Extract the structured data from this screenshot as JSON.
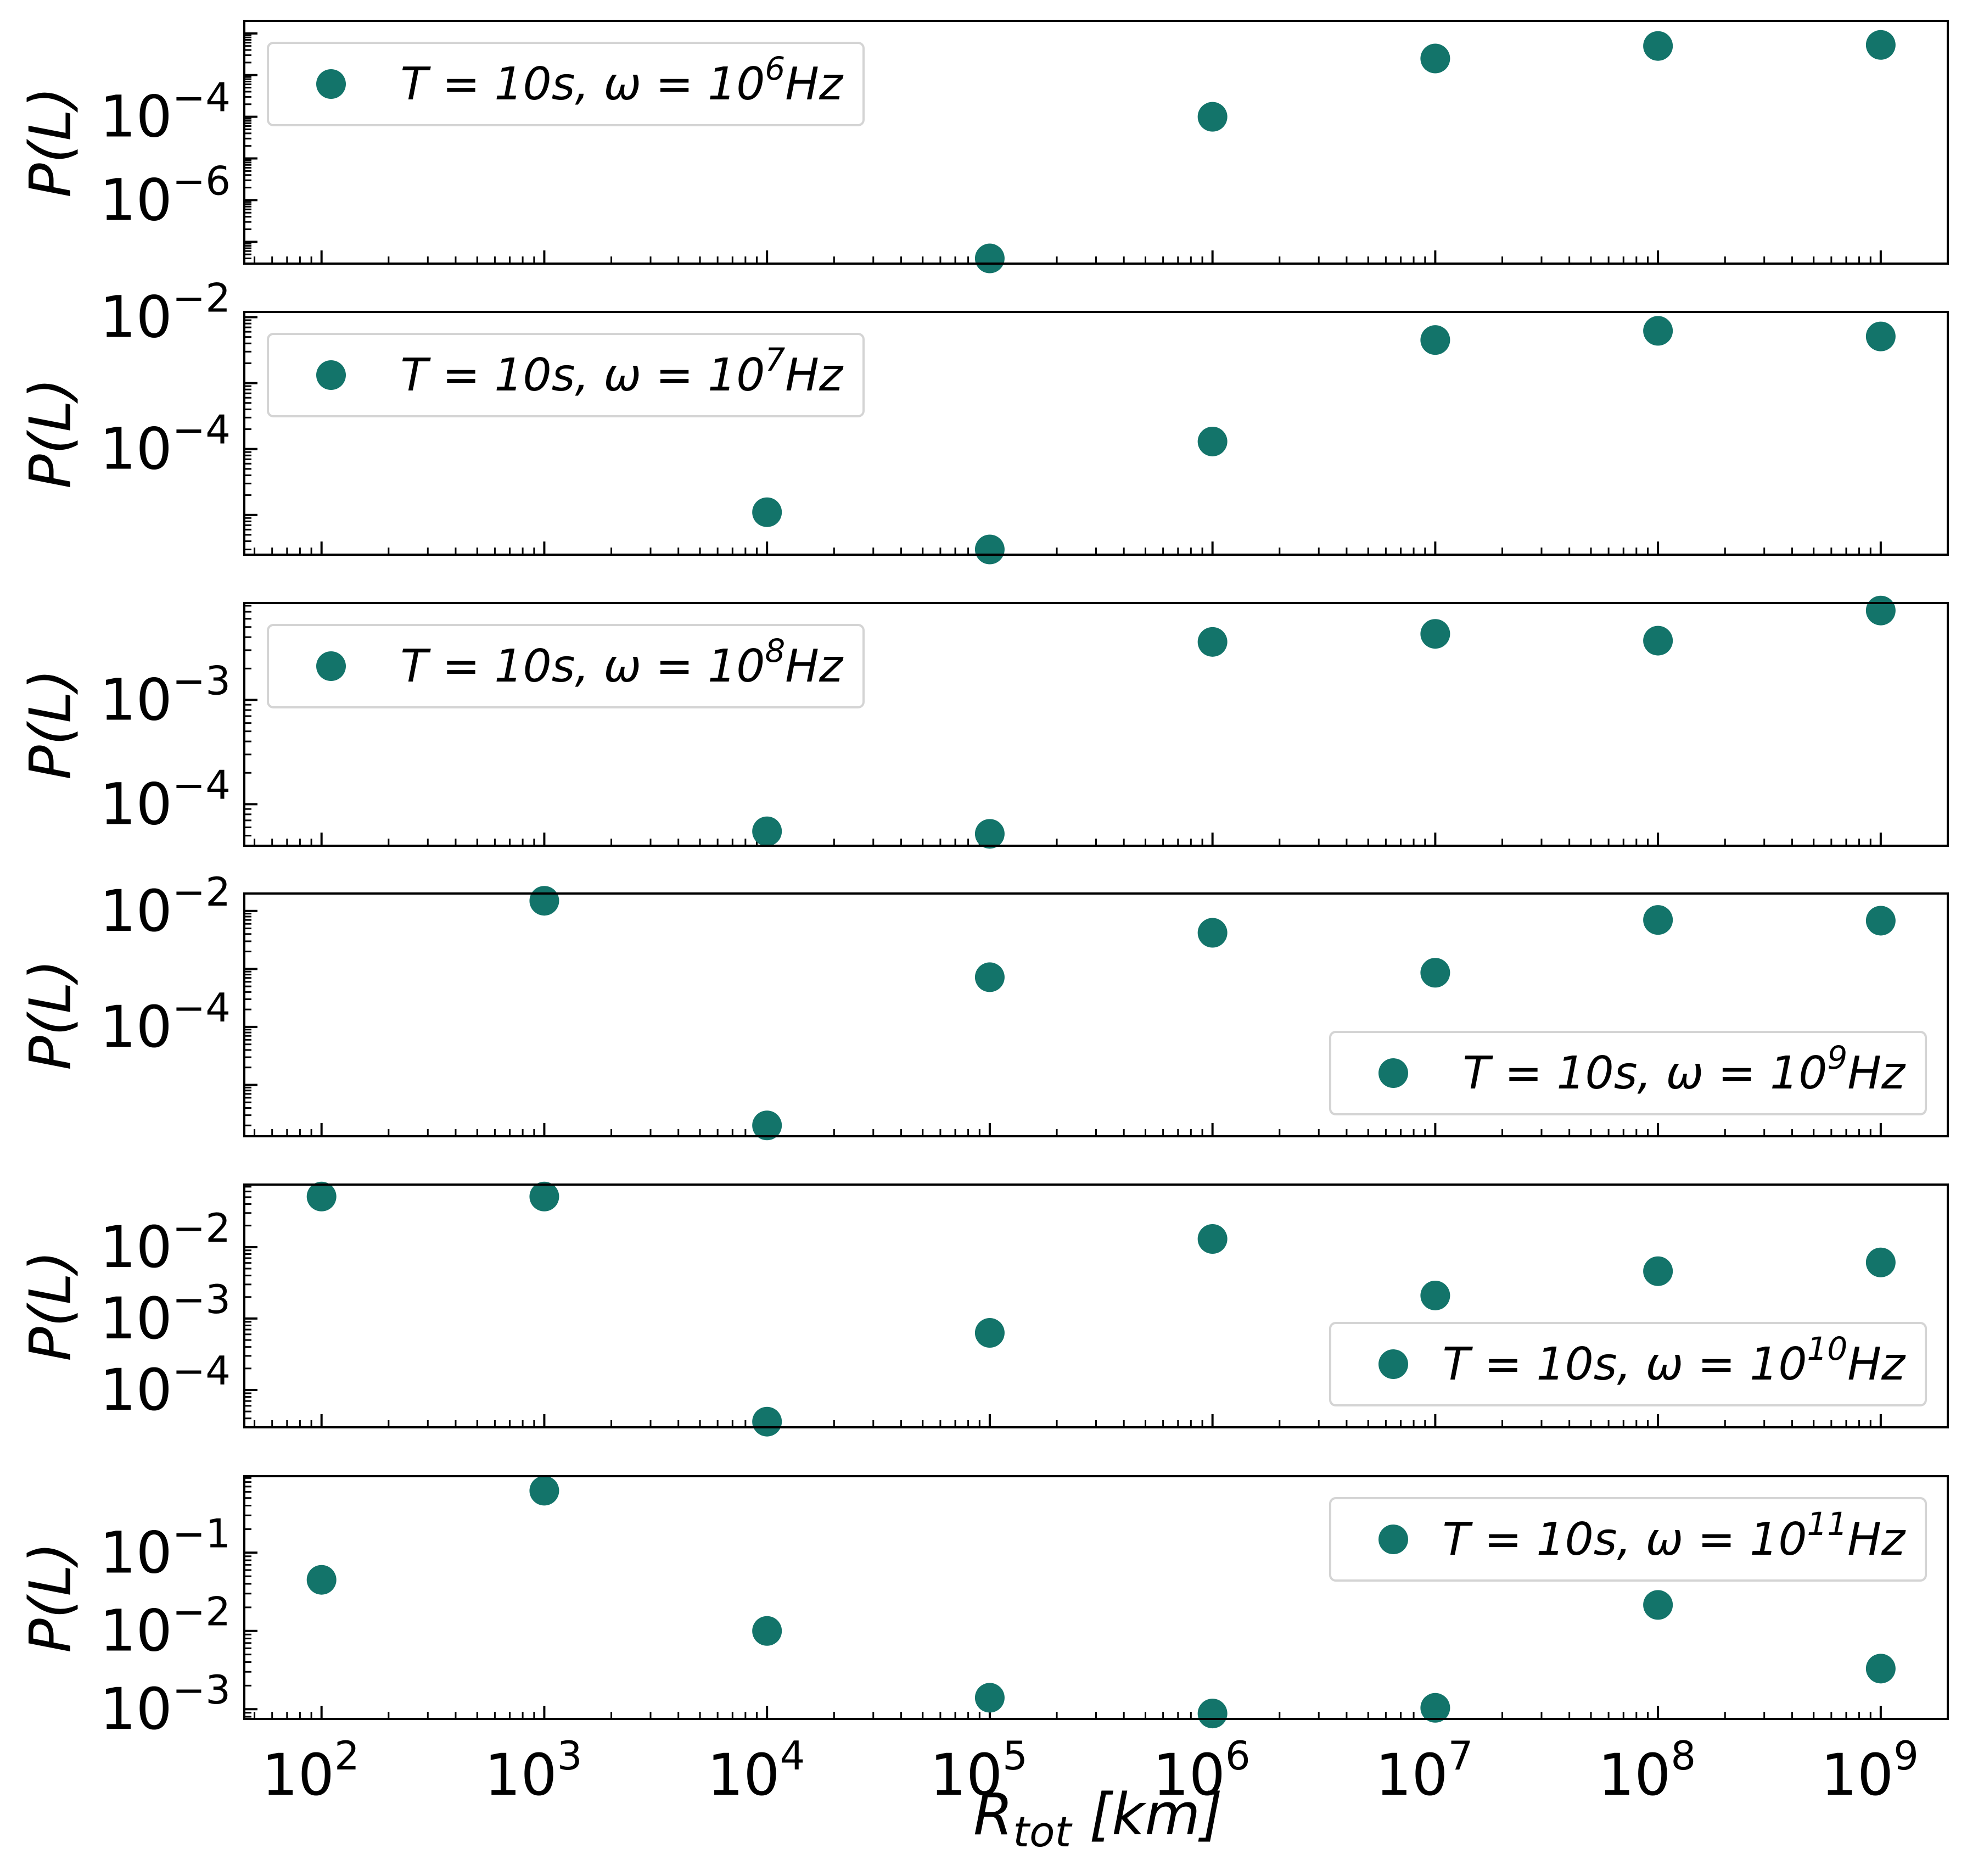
{
  "figure": {
    "x_axis_label": {
      "main": "R",
      "sub": "tot",
      "unit": " [km]"
    },
    "y_axis_label": "P(L)",
    "marker_color": "#13746a"
  },
  "chart_data": [
    {
      "type": "scatter",
      "legend": {
        "prefix": "T = 10s, ω = 10",
        "exp": "6",
        "suffix": "Hz",
        "placement": "upper left"
      },
      "ylabel": "P(L)",
      "xscale": "log",
      "yscale": "log",
      "xlim": [
        45,
        2000000000
      ],
      "ylim": [
        3e-08,
        0.02
      ],
      "yticks": [
        {
          "value": 1e-06,
          "exp": "−6"
        },
        {
          "value": 0.0001,
          "exp": "−4"
        }
      ],
      "x": [
        100000,
        1000000,
        10000000,
        100000000,
        1000000000
      ],
      "y": [
        4e-08,
        0.0001,
        0.0025,
        0.005,
        0.0053
      ]
    },
    {
      "type": "scatter",
      "legend": {
        "prefix": "T = 10s, ω = 10",
        "exp": "7",
        "suffix": "Hz",
        "placement": "upper left"
      },
      "ylabel": "P(L)",
      "xscale": "log",
      "yscale": "log",
      "xlim": [
        45,
        2000000000
      ],
      "ylim": [
        2.5e-06,
        0.012
      ],
      "yticks": [
        {
          "value": 0.0001,
          "exp": "−4"
        },
        {
          "value": 0.01,
          "exp": "−2"
        }
      ],
      "x": [
        10000,
        100000,
        1000000,
        10000000,
        100000000,
        1000000000
      ],
      "y": [
        1.1e-05,
        3e-06,
        0.00013,
        0.0045,
        0.0062,
        0.0051
      ]
    },
    {
      "type": "scatter",
      "legend": {
        "prefix": "T = 10s, ω = 10",
        "exp": "8",
        "suffix": "Hz",
        "placement": "upper left"
      },
      "ylabel": "P(L)",
      "xscale": "log",
      "yscale": "log",
      "xlim": [
        45,
        2000000000
      ],
      "ylim": [
        4e-05,
        0.0085
      ],
      "yticks": [
        {
          "value": 0.0001,
          "exp": "−4"
        },
        {
          "value": 0.001,
          "exp": "−3"
        }
      ],
      "x": [
        10000,
        100000,
        1000000,
        10000000,
        100000000,
        1000000000
      ],
      "y": [
        5.5e-05,
        5.2e-05,
        0.0036,
        0.0043,
        0.0037,
        0.0072
      ]
    },
    {
      "type": "scatter",
      "legend": {
        "prefix": "T = 10s, ω = 10",
        "exp": "9",
        "suffix": "Hz",
        "placement": "lower right"
      },
      "ylabel": "P(L)",
      "xscale": "log",
      "yscale": "log",
      "xlim": [
        45,
        2000000000
      ],
      "ylim": [
        1.3e-06,
        0.02
      ],
      "yticks": [
        {
          "value": 0.0001,
          "exp": "−4"
        },
        {
          "value": 0.01,
          "exp": "−2"
        }
      ],
      "x": [
        1000,
        10000,
        100000,
        1000000,
        10000000,
        100000000,
        1000000000
      ],
      "y": [
        0.015,
        2e-06,
        0.00072,
        0.0042,
        0.00086,
        0.007,
        0.0068
      ]
    },
    {
      "type": "scatter",
      "legend": {
        "prefix": "T = 10s, ω = 10",
        "exp": "10",
        "suffix": "Hz",
        "placement": "lower right"
      },
      "ylabel": "P(L)",
      "xscale": "log",
      "yscale": "log",
      "xlim": [
        45,
        2000000000
      ],
      "ylim": [
        3e-05,
        0.075
      ],
      "yticks": [
        {
          "value": 0.0001,
          "exp": "−4"
        },
        {
          "value": 0.001,
          "exp": "−3"
        },
        {
          "value": 0.01,
          "exp": "−2"
        }
      ],
      "x": [
        100,
        1000,
        10000,
        100000,
        1000000,
        10000000,
        100000000,
        1000000000
      ],
      "y": [
        0.051,
        0.051,
        3.6e-05,
        0.00063,
        0.013,
        0.0021,
        0.0046,
        0.0061
      ]
    },
    {
      "type": "scatter",
      "legend": {
        "prefix": "T = 10s, ω = 10",
        "exp": "11",
        "suffix": "Hz",
        "placement": "upper right"
      },
      "ylabel": "P(L)",
      "xscale": "log",
      "yscale": "log",
      "xlim": [
        45,
        2000000000
      ],
      "ylim": [
        0.00075,
        0.95
      ],
      "yticks": [
        {
          "value": 0.001,
          "exp": "−3"
        },
        {
          "value": 0.01,
          "exp": "−2"
        },
        {
          "value": 0.1,
          "exp": "−1"
        }
      ],
      "xticks": [
        {
          "value": 100,
          "exp": "2"
        },
        {
          "value": 1000,
          "exp": "3"
        },
        {
          "value": 10000,
          "exp": "4"
        },
        {
          "value": 100000,
          "exp": "5"
        },
        {
          "value": 1000000,
          "exp": "6"
        },
        {
          "value": 10000000,
          "exp": "7"
        },
        {
          "value": 100000000,
          "exp": "8"
        },
        {
          "value": 1000000000,
          "exp": "9"
        }
      ],
      "x": [
        100,
        1000,
        10000,
        100000,
        1000000,
        10000000,
        100000000,
        1000000000
      ],
      "y": [
        0.045,
        0.62,
        0.01,
        0.0014,
        0.00088,
        0.00104,
        0.0215,
        0.0033
      ]
    }
  ]
}
